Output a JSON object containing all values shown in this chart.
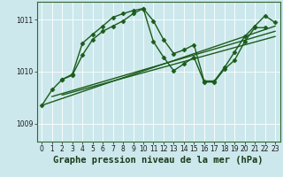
{
  "title": "Graphe pression niveau de la mer (hPa)",
  "background_color": "#cce8ec",
  "grid_color": "#b0d8dc",
  "line_color": "#1a5c1a",
  "xlim": [
    -0.5,
    23.5
  ],
  "ylim": [
    1008.65,
    1011.35
  ],
  "yticks": [
    1009,
    1010,
    1011
  ],
  "xticks": [
    0,
    1,
    2,
    3,
    4,
    5,
    6,
    7,
    8,
    9,
    10,
    11,
    12,
    13,
    14,
    15,
    16,
    17,
    18,
    19,
    20,
    21,
    22,
    23
  ],
  "curve1_x": [
    0,
    1,
    2,
    3,
    4,
    5,
    6,
    7,
    8,
    9,
    10,
    11,
    12,
    13,
    14,
    15,
    16,
    17,
    18,
    19,
    20,
    21,
    22
  ],
  "curve1_y": [
    1009.35,
    1009.65,
    1009.85,
    1009.93,
    1010.32,
    1010.62,
    1010.78,
    1010.88,
    1010.98,
    1011.12,
    1011.22,
    1010.58,
    1010.28,
    1010.02,
    1010.15,
    1010.28,
    1009.8,
    1009.8,
    1010.05,
    1010.22,
    1010.58,
    1010.85,
    1010.85
  ],
  "curve2_x": [
    2,
    3,
    4,
    5,
    6,
    7,
    8,
    9,
    10,
    11,
    12,
    13,
    14,
    15,
    16,
    17,
    18,
    19,
    20,
    21,
    22,
    23
  ],
  "curve2_y": [
    1009.85,
    1009.95,
    1010.55,
    1010.72,
    1010.88,
    1011.05,
    1011.12,
    1011.18,
    1011.22,
    1010.98,
    1010.62,
    1010.35,
    1010.42,
    1010.52,
    1009.82,
    1009.82,
    1010.08,
    1010.38,
    1010.68,
    1010.88,
    1011.08,
    1010.95
  ],
  "line1_x": [
    0,
    23
  ],
  "line1_y": [
    1009.35,
    1010.88
  ],
  "line2_x": [
    1,
    23
  ],
  "line2_y": [
    1009.52,
    1010.78
  ],
  "line3_x": [
    2,
    23
  ],
  "line3_y": [
    1009.55,
    1010.68
  ],
  "marker": "D",
  "markersize": 2.5,
  "linewidth": 1.0,
  "title_fontsize": 7.5,
  "tick_fontsize": 5.5
}
